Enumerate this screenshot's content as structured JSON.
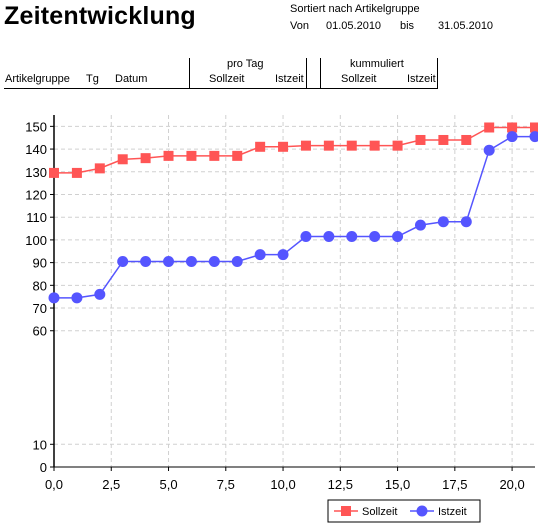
{
  "report": {
    "title": "Zeitentwicklung",
    "sort_label": "Sortiert nach Artikelgruppe",
    "from_label": "Von",
    "from_date": "01.05.2010",
    "to_label": "bis",
    "to_date": "31.05.2010"
  },
  "columns": {
    "artikelgruppe": "Artikelgruppe",
    "tg": "Tg",
    "datum": "Datum",
    "pro_tag": "pro Tag",
    "sollzeit_1": "Sollzeit",
    "istzeit_1": "Istzeit",
    "kummuliert": "kummuliert",
    "sollzeit_2": "Sollzeit",
    "istzeit_2": "Istzeit"
  },
  "colors": {
    "sollzeit": "#ff5555",
    "istzeit": "#5555ff",
    "grid": "#d0d0d0"
  },
  "chart_data": {
    "type": "line",
    "xlim": [
      0,
      21
    ],
    "ylim": [
      0,
      155
    ],
    "x_ticks": [
      "0,0",
      "2,5",
      "5,0",
      "7,5",
      "10,0",
      "12,5",
      "15,0",
      "17,5",
      "20,0"
    ],
    "y_ticks": [
      "0",
      "10",
      "60",
      "70",
      "80",
      "90",
      "100",
      "110",
      "120",
      "130",
      "140",
      "150"
    ],
    "grid": true,
    "legend_position": "bottom-right",
    "x": [
      0,
      1,
      2,
      3,
      4,
      5,
      6,
      7,
      8,
      9,
      10,
      11,
      12,
      13,
      14,
      15,
      16,
      17,
      18,
      19,
      20,
      21
    ],
    "series": [
      {
        "name": "Sollzeit",
        "marker": "square",
        "values": [
          129.5,
          129.5,
          131.5,
          135.5,
          136,
          137,
          137,
          137,
          137,
          141,
          141,
          141.5,
          141.5,
          141.5,
          141.5,
          141.5,
          144,
          144,
          144,
          149.5,
          149.5,
          149.5
        ]
      },
      {
        "name": "Istzeit",
        "marker": "circle",
        "values": [
          74.5,
          74.5,
          76,
          90.5,
          90.5,
          90.5,
          90.5,
          90.5,
          90.5,
          93.5,
          93.5,
          101.5,
          101.5,
          101.5,
          101.5,
          101.5,
          106.5,
          108,
          108,
          139.5,
          145.5,
          145.5
        ]
      }
    ]
  }
}
